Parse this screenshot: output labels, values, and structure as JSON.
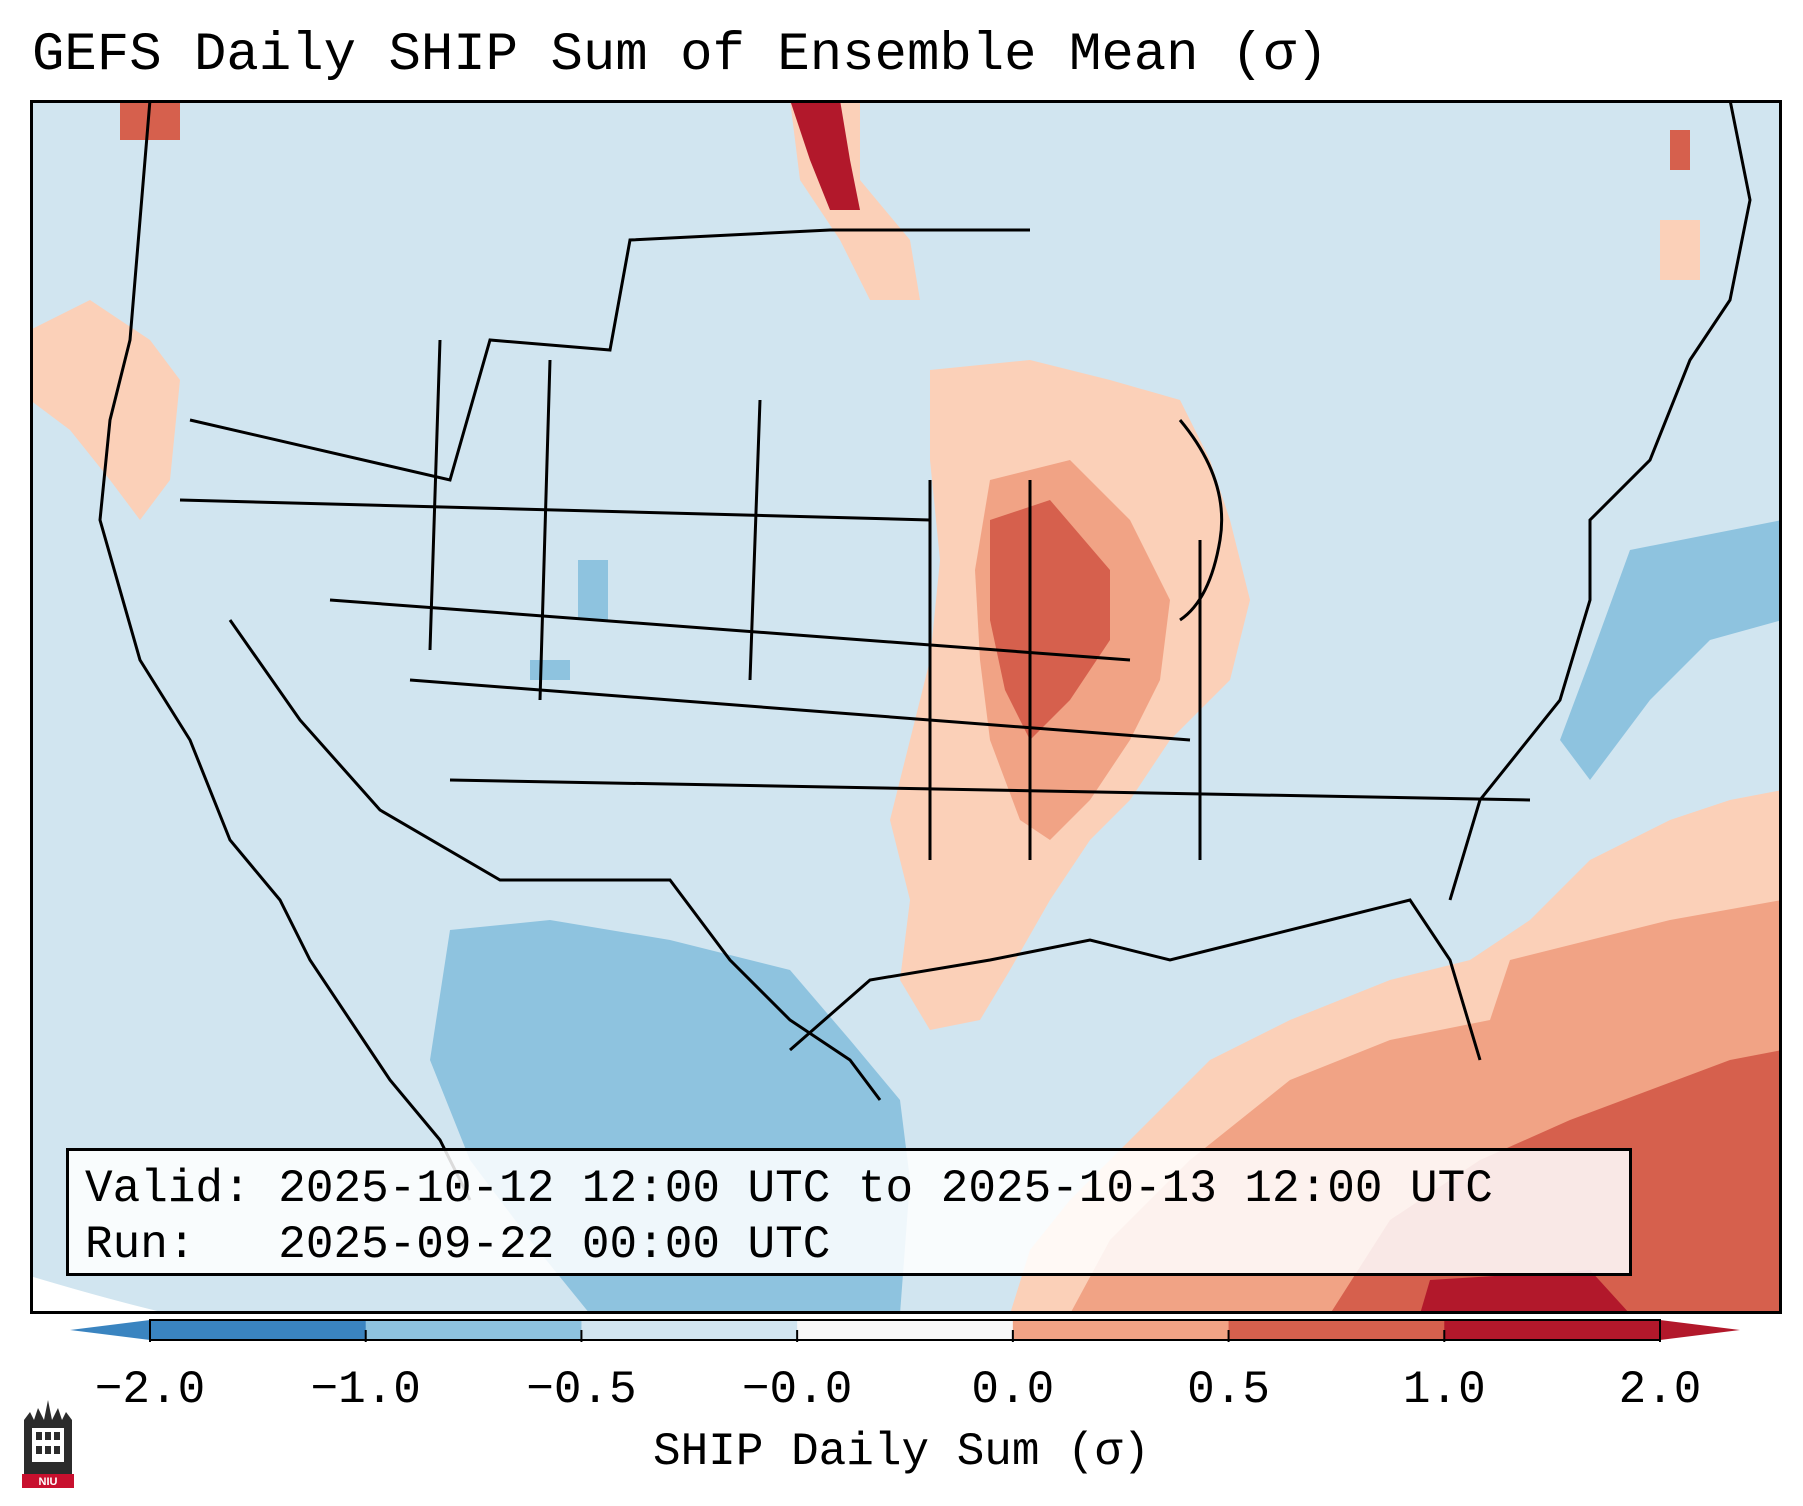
{
  "title": "GEFS Daily SHIP Sum of Ensemble Mean (σ)",
  "valid_label": "Valid:",
  "valid_value": "2025-10-12 12:00 UTC to 2025-10-13 12:00 UTC",
  "run_label": "Run:",
  "run_value": "2025-09-22 00:00 UTC",
  "colorbar": {
    "ticks": [
      "−2.0",
      "−1.0",
      "−0.5",
      "−0.0",
      "0.0",
      "0.5",
      "1.0",
      "2.0"
    ],
    "label": "SHIP Daily Sum (σ)",
    "colors": [
      "#3a84c0",
      "#8ec3df",
      "#d1e5f0",
      "#f7f7f7",
      "#fbd0b8",
      "#f1a385",
      "#d6604d",
      "#b2182b"
    ]
  },
  "logo_text": "NIU",
  "palette": {
    "ocean_land_base": "#d1e5f0",
    "light_blue": "#8ec3df",
    "mid_blue": "#3a84c0",
    "light_red": "#fbd0b8",
    "mid_red": "#f1a385",
    "red": "#d6604d",
    "dark_red": "#b2182b"
  }
}
